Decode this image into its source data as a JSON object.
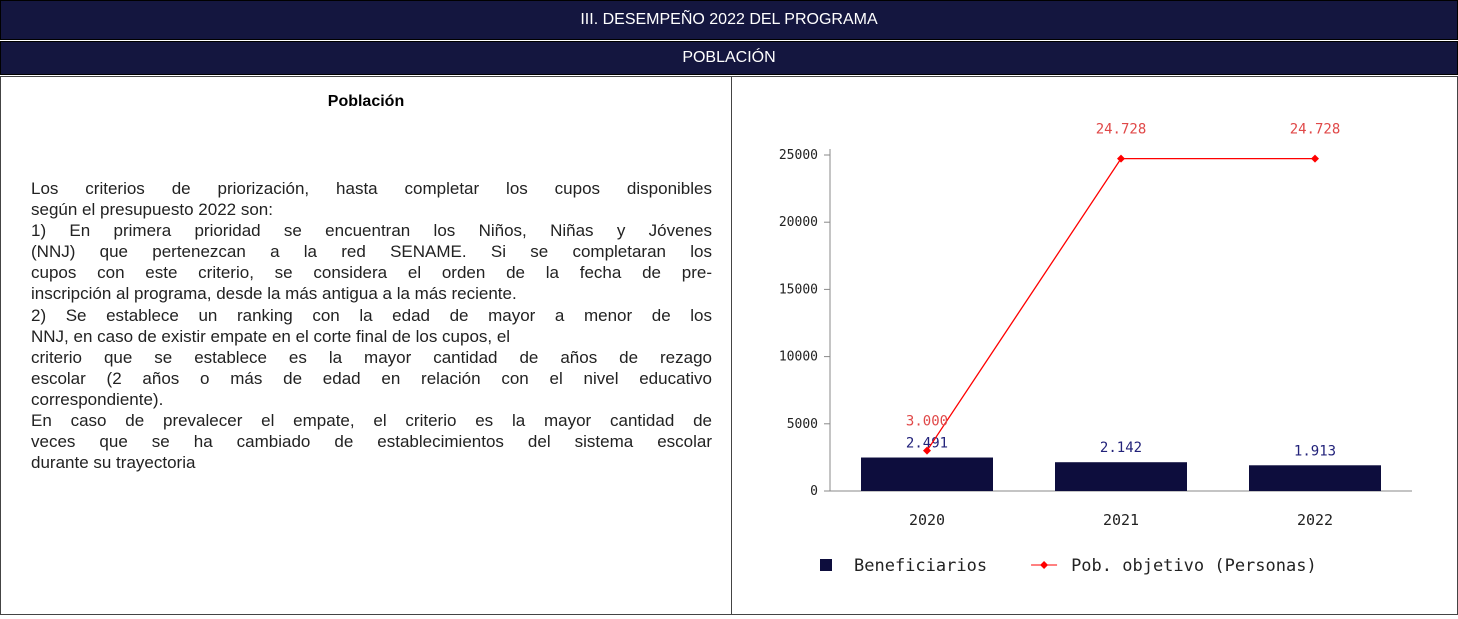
{
  "header": {
    "title": "III. DESEMPEÑO 2022 DEL PROGRAMA",
    "subtitle": "POBLACIÓN"
  },
  "text_section": {
    "heading": "Población",
    "paragraphs": [
      [
        "Los criterios de priorización, hasta completar los cupos disponibles",
        "según el presupuesto 2022 son:"
      ],
      [
        "1) En primera prioridad se encuentran los Niños, Niñas y Jóvenes",
        "(NNJ) que pertenezcan a la red SENAME. Si se completaran los",
        "cupos con este criterio, se considera el orden de la fecha de pre-",
        "inscripción al programa, desde la más antigua a la más reciente."
      ],
      [
        "2) Se establece un ranking con la edad de mayor a menor de los",
        "NNJ, en caso de existir empate en el corte final de los cupos, el"
      ],
      [
        "criterio que se establece es la mayor cantidad de años de rezago",
        "escolar (2 años o más de edad en relación con el nivel educativo",
        "correspondiente)."
      ],
      [
        "En caso de prevalecer el empate, el criterio es la mayor cantidad de",
        "veces que se ha cambiado de establecimientos del sistema escolar",
        "durante su trayectoria"
      ]
    ]
  },
  "chart_data": {
    "type": "bar_line",
    "categories": [
      "2020",
      "2021",
      "2022"
    ],
    "series": [
      {
        "name": "Beneficiarios",
        "type": "bar",
        "color": "#0d0d3d",
        "label_color": "#22227a",
        "values": [
          2491,
          2142,
          1913
        ],
        "value_labels": [
          "2.491",
          "2.142",
          "1.913"
        ]
      },
      {
        "name": "Pob. objetivo (Personas)",
        "type": "line",
        "color": "#ff0000",
        "label_color": "#e04848",
        "values": [
          3000,
          24728,
          24728
        ],
        "value_labels": [
          "3.000",
          "24.728",
          "24.728"
        ]
      }
    ],
    "ylim": [
      0,
      25000
    ],
    "yticks": [
      0,
      5000,
      10000,
      15000,
      20000,
      25000
    ],
    "legend": "bottom"
  }
}
